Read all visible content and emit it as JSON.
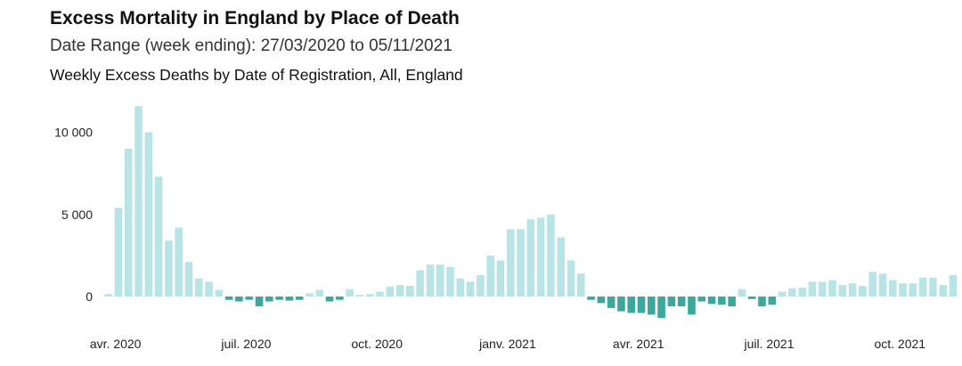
{
  "header": {
    "title": "Excess Mortality in England by Place of Death",
    "subtitle": "Date Range (week ending): 27/03/2020 to 05/11/2021",
    "chart_subtitle": "Weekly Excess Deaths by Date of Registration, All, England"
  },
  "colors": {
    "positive": "#b9e4e6",
    "negative": "#3aa89c"
  },
  "chart_data": {
    "type": "bar",
    "title": "Excess Mortality in England by Place of Death",
    "subtitle": "Weekly Excess Deaths by Date of Registration, All, England",
    "xlabel": "",
    "ylabel": "",
    "ylim": [
      -1700,
      11800
    ],
    "grid": false,
    "y_ticks": [
      {
        "value": 0,
        "label": "0"
      },
      {
        "value": 5000,
        "label": "5 000"
      },
      {
        "value": 10000,
        "label": "10 000"
      }
    ],
    "x_ticks": [
      {
        "index": 0,
        "label": "avr. 2020"
      },
      {
        "index": 13,
        "label": "juil. 2020"
      },
      {
        "index": 26,
        "label": "oct. 2020"
      },
      {
        "index": 39,
        "label": "janv. 2021"
      },
      {
        "index": 52,
        "label": "avr. 2021"
      },
      {
        "index": 65,
        "label": "juil. 2021"
      },
      {
        "index": 78,
        "label": "oct. 2021"
      }
    ],
    "first_week_ending": "27/03/2020",
    "last_week_ending": "05/11/2021",
    "values": [
      150,
      5400,
      9000,
      11600,
      10000,
      7300,
      3400,
      4200,
      2100,
      1100,
      900,
      400,
      -200,
      -300,
      -200,
      -600,
      -300,
      -200,
      -250,
      -200,
      200,
      400,
      -300,
      -200,
      450,
      100,
      150,
      300,
      600,
      700,
      650,
      1600,
      1950,
      1950,
      1800,
      1100,
      900,
      1300,
      2500,
      2200,
      4100,
      4100,
      4700,
      4800,
      5000,
      3600,
      2200,
      1400,
      -200,
      -400,
      -700,
      -900,
      -1000,
      -1000,
      -1100,
      -1300,
      -600,
      -600,
      -1100,
      -300,
      -450,
      -500,
      -600,
      450,
      -150,
      -600,
      -500,
      300,
      500,
      550,
      900,
      900,
      1000,
      700,
      800,
      650,
      1500,
      1400,
      1000,
      800,
      800,
      1150,
      1150,
      700,
      1300
    ]
  }
}
